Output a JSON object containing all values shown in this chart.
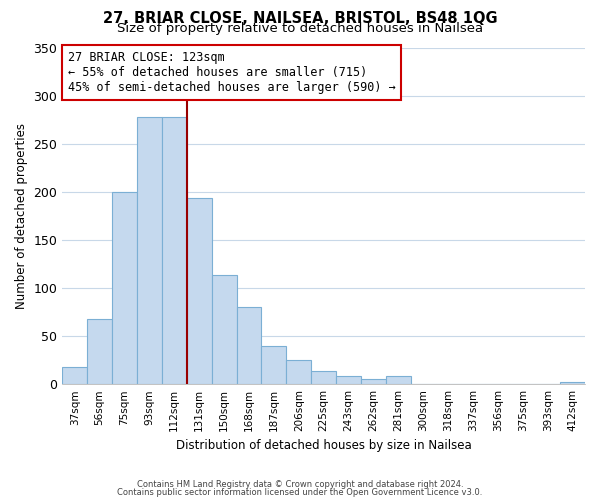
{
  "title": "27, BRIAR CLOSE, NAILSEA, BRISTOL, BS48 1QG",
  "subtitle": "Size of property relative to detached houses in Nailsea",
  "xlabel": "Distribution of detached houses by size in Nailsea",
  "ylabel": "Number of detached properties",
  "categories": [
    "37sqm",
    "56sqm",
    "75sqm",
    "93sqm",
    "112sqm",
    "131sqm",
    "150sqm",
    "168sqm",
    "187sqm",
    "206sqm",
    "225sqm",
    "243sqm",
    "262sqm",
    "281sqm",
    "300sqm",
    "318sqm",
    "337sqm",
    "356sqm",
    "375sqm",
    "393sqm",
    "412sqm"
  ],
  "values": [
    18,
    68,
    200,
    278,
    278,
    194,
    114,
    80,
    40,
    25,
    14,
    8,
    5,
    8,
    0,
    0,
    0,
    0,
    0,
    0,
    2
  ],
  "bar_color": "#c5d9ee",
  "bar_edge_color": "#7bafd4",
  "highlight_line_color": "#990000",
  "annotation_title": "27 BRIAR CLOSE: 123sqm",
  "annotation_line1": "← 55% of detached houses are smaller (715)",
  "annotation_line2": "45% of semi-detached houses are larger (590) →",
  "annotation_box_color": "#ffffff",
  "annotation_box_edge": "#cc0000",
  "ylim": [
    0,
    350
  ],
  "yticks": [
    0,
    50,
    100,
    150,
    200,
    250,
    300,
    350
  ],
  "footnote1": "Contains HM Land Registry data © Crown copyright and database right 2024.",
  "footnote2": "Contains public sector information licensed under the Open Government Licence v3.0.",
  "bg_color": "#ffffff",
  "grid_color": "#c8d8e8",
  "title_fontsize": 10.5,
  "subtitle_fontsize": 9.5
}
